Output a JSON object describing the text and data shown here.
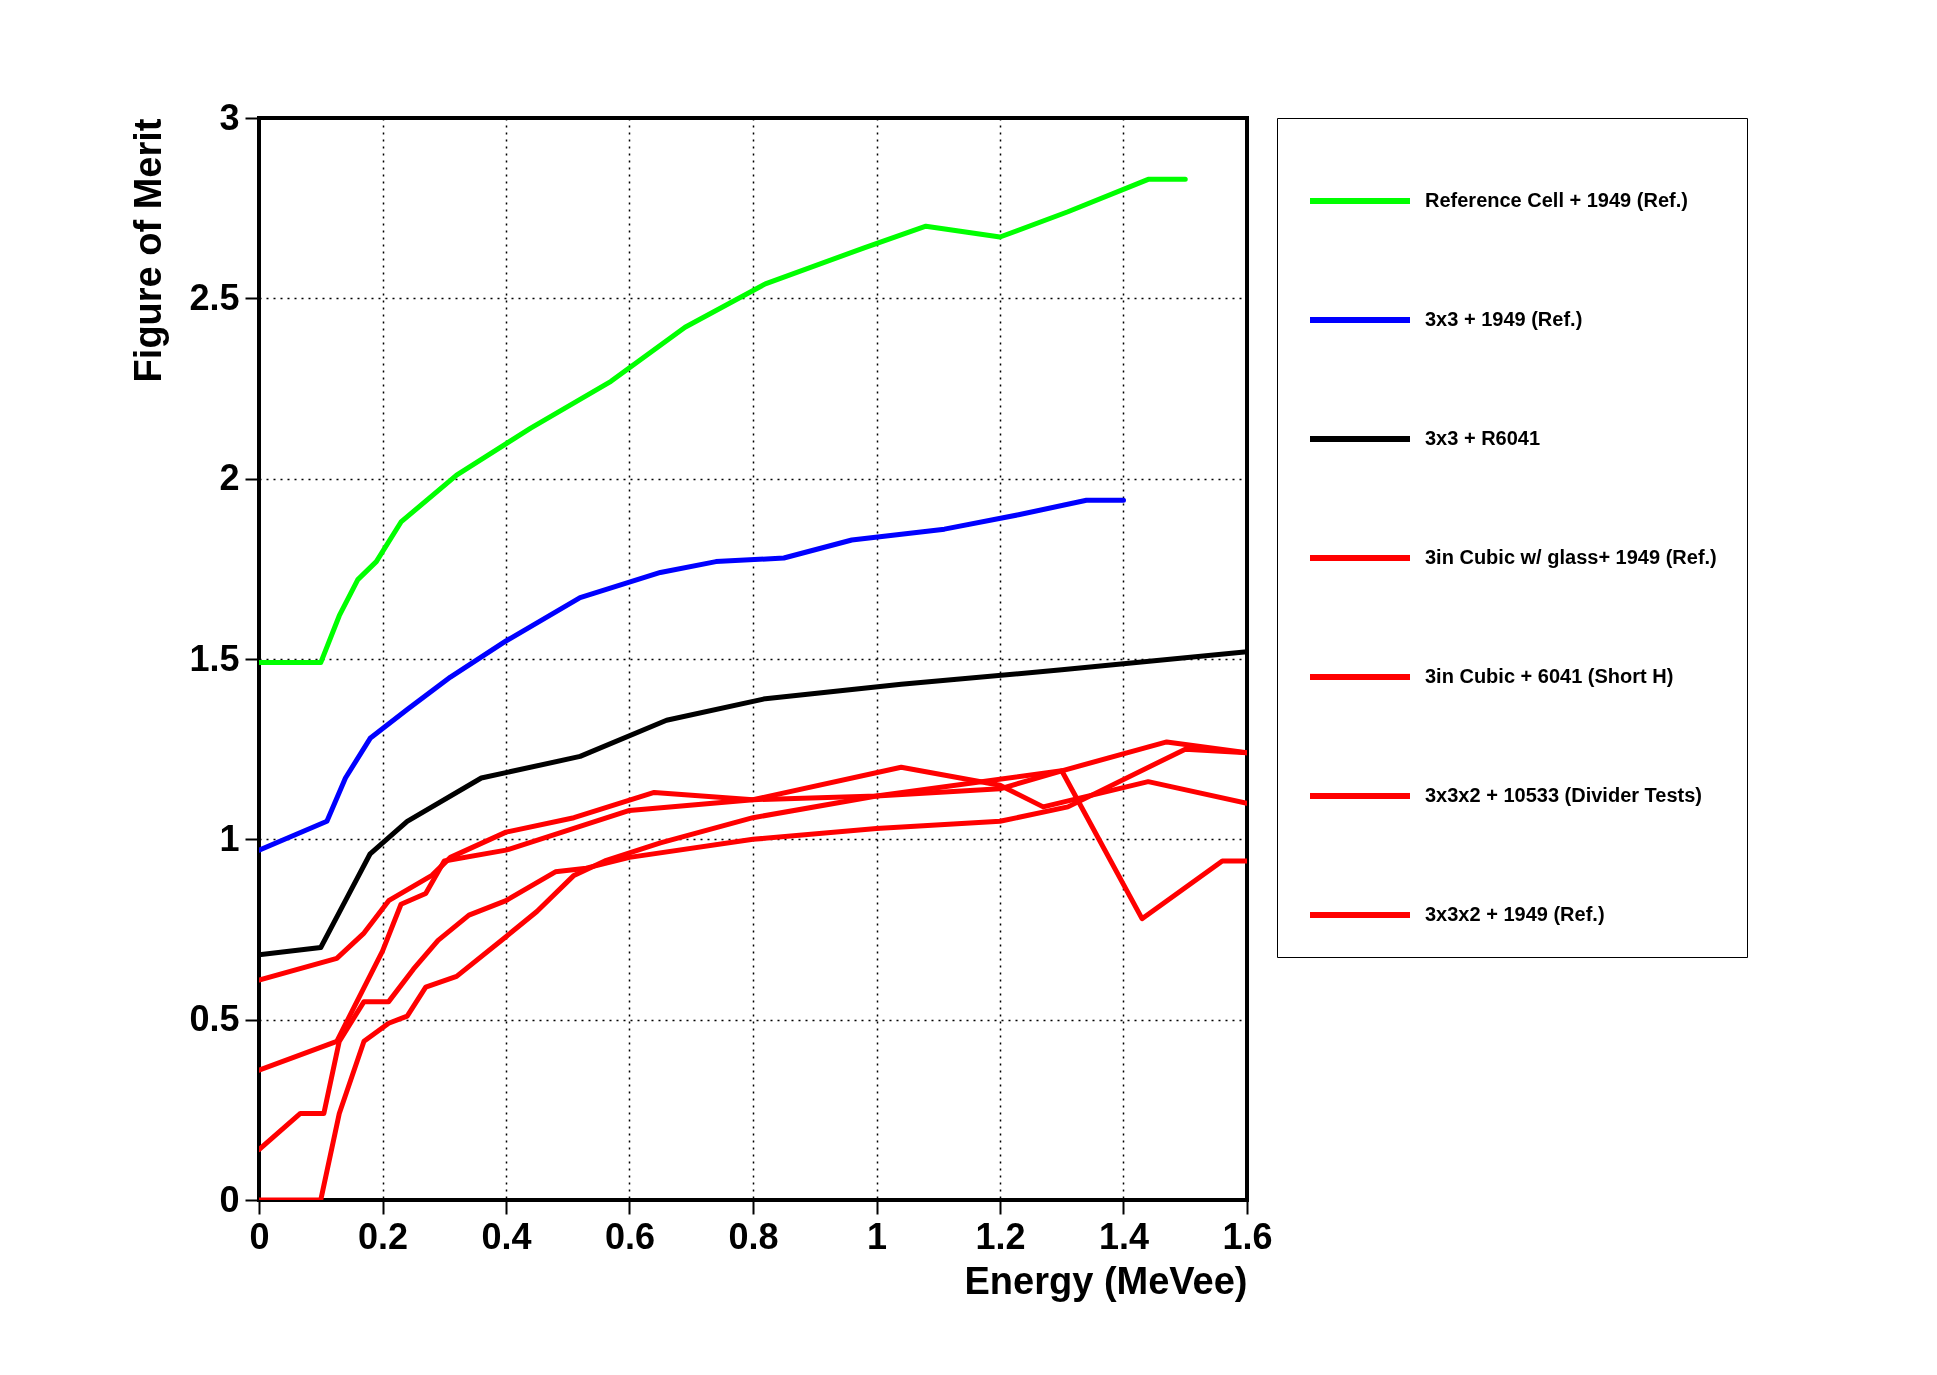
{
  "chart_data": {
    "type": "line",
    "xlabel": "Energy (MeVee)",
    "ylabel": "Figure of Merit",
    "xlim": [
      0,
      1.6
    ],
    "xticks": [
      0,
      0.2,
      0.4,
      0.6,
      0.8,
      1,
      1.2,
      1.4,
      1.6
    ],
    "ylim": [
      0,
      3
    ],
    "yticks": [
      0,
      0.5,
      1,
      1.5,
      2,
      2.5,
      3
    ],
    "grid": true,
    "legend": "right",
    "line_style": "solid",
    "series": [
      {
        "name": "Reference Cell + 1949 (Ref.)",
        "color": "#00ff00",
        "x": [
          0,
          0.1,
          0.13,
          0.16,
          0.19,
          0.23,
          0.32,
          0.44,
          0.57,
          0.69,
          0.82,
          0.98,
          1.08,
          1.2,
          1.31,
          1.44,
          1.5
        ],
        "values": [
          1.49,
          1.49,
          1.62,
          1.72,
          1.77,
          1.88,
          2.01,
          2.14,
          2.27,
          2.42,
          2.54,
          2.64,
          2.7,
          2.67,
          2.74,
          2.83,
          2.83
        ]
      },
      {
        "name": "3x3 + 1949 (Ref.)",
        "color": "#0000ff",
        "x": [
          0,
          0.11,
          0.14,
          0.18,
          0.24,
          0.31,
          0.4,
          0.52,
          0.65,
          0.74,
          0.85,
          0.96,
          1.11,
          1.23,
          1.34,
          1.4
        ],
        "values": [
          0.97,
          1.05,
          1.17,
          1.28,
          1.36,
          1.45,
          1.55,
          1.67,
          1.74,
          1.77,
          1.78,
          1.83,
          1.86,
          1.9,
          1.94,
          1.94
        ]
      },
      {
        "name": "3x3 + R6041",
        "color": "#000000",
        "x": [
          0,
          0.1,
          0.14,
          0.18,
          0.24,
          0.36,
          0.52,
          0.66,
          0.82,
          1.04,
          1.3,
          1.6
        ],
        "values": [
          0.68,
          0.7,
          0.83,
          0.96,
          1.05,
          1.17,
          1.23,
          1.33,
          1.39,
          1.43,
          1.47,
          1.52
        ]
      },
      {
        "name": "3in Cubic w/ glass+ 1949 (Ref.)",
        "color": "#ff0000",
        "x": [
          0,
          0.126,
          0.17,
          0.21,
          0.28,
          0.31,
          0.4,
          0.51,
          0.64,
          0.8,
          1.04,
          1.2,
          1.27,
          1.44,
          1.6
        ],
        "values": [
          0.61,
          0.67,
          0.74,
          0.83,
          0.9,
          0.95,
          1.02,
          1.06,
          1.13,
          1.11,
          1.2,
          1.15,
          1.09,
          1.16,
          1.1
        ]
      },
      {
        "name": "3in Cubic + 6041 (Short H)",
        "color": "#ff0000",
        "x": [
          0,
          0.126,
          0.2,
          0.23,
          0.27,
          0.3,
          0.4,
          0.6,
          0.8,
          1,
          1.3,
          1.43,
          1.56,
          1.6
        ],
        "values": [
          0.36,
          0.44,
          0.69,
          0.82,
          0.85,
          0.94,
          0.97,
          1.08,
          1.11,
          1.12,
          1.19,
          0.78,
          0.94,
          0.94
        ]
      },
      {
        "name": "3x3x2 + 10533 (Divider Tests)",
        "color": "#ff0000",
        "x": [
          0,
          0.067,
          0.105,
          0.13,
          0.17,
          0.21,
          0.25,
          0.29,
          0.34,
          0.4,
          0.48,
          0.53,
          0.6,
          0.8,
          1,
          1.2,
          1.31,
          1.5,
          1.6
        ],
        "values": [
          0.14,
          0.24,
          0.24,
          0.44,
          0.55,
          0.55,
          0.64,
          0.72,
          0.79,
          0.83,
          0.91,
          0.92,
          0.95,
          1,
          1.03,
          1.05,
          1.09,
          1.25,
          1.24
        ]
      },
      {
        "name": "3x3x2 + 1949 (Ref.)",
        "color": "#ff0000",
        "x": [
          0,
          0.1,
          0.13,
          0.17,
          0.21,
          0.24,
          0.27,
          0.32,
          0.4,
          0.45,
          0.51,
          0.56,
          0.65,
          0.8,
          1,
          1.2,
          1.3,
          1.47,
          1.6
        ],
        "values": [
          0,
          0,
          0.24,
          0.44,
          0.49,
          0.51,
          0.59,
          0.62,
          0.73,
          0.8,
          0.9,
          0.94,
          0.99,
          1.06,
          1.12,
          1.14,
          1.19,
          1.27,
          1.24
        ]
      }
    ]
  }
}
